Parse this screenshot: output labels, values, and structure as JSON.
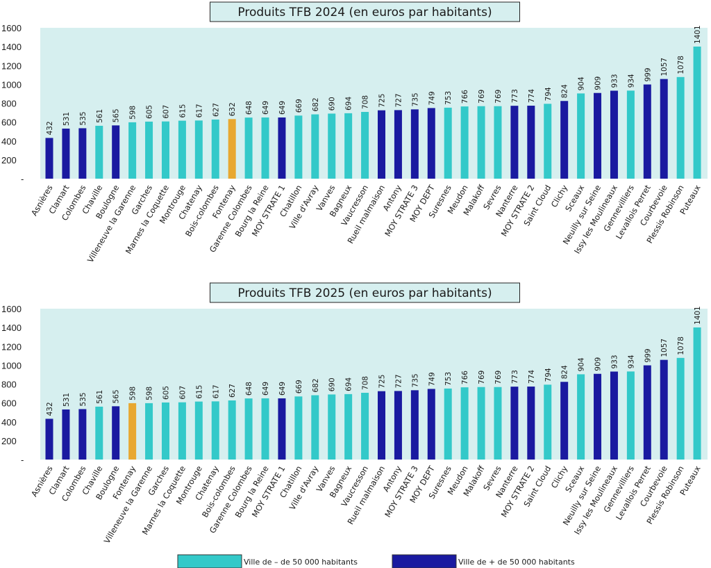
{
  "legend": {
    "small_label": "Ville de – de 50 000 habitants",
    "large_label": "Ville de + de 50 000 habitants"
  },
  "colors": {
    "small": "#33C9C9",
    "large": "#1A1AA0",
    "highlight": "#E8A830",
    "plot_bg": "#D6EFEF"
  },
  "chart_data": [
    {
      "type": "bar",
      "title": "Produits TFB 2024 (en euros par habitants)",
      "ylim": [
        0,
        1600
      ],
      "yticks": [
        "-",
        "200",
        "400",
        "600",
        "800",
        "1000",
        "1200",
        "1400",
        "1600"
      ],
      "grid": false,
      "categories": [
        "Asnières",
        "Clamart",
        "Colombes",
        "Chaville",
        "Boulogne",
        "Villeneuve la Garenne",
        "Garches",
        "Marnes la Coquette",
        "Montrouge",
        "Chatenay",
        "Bois-colombes",
        "Fontenay",
        "Garenne Colombes",
        "Bourg la Reine",
        "MOY STRATE 1",
        "Chatillon",
        "Ville d'Avray",
        "Vanves",
        "Bagneux",
        "Vaucresson",
        "Rueil malmaison",
        "Antony",
        "MOY STRATE 3",
        "MOY DEPT",
        "Suresnes",
        "Meudon",
        "Malakoff",
        "Sevres",
        "Nanterre",
        "MOY STRATE 2",
        "Saint Cloud",
        "Clichy",
        "Sceaux",
        "Neuilly sur Seine",
        "Issy les Moulineaux",
        "Gennevilliers",
        "Levallois Perret",
        "Courbevoie",
        "Plessis Robinson",
        "Puteaux"
      ],
      "values": [
        432,
        531,
        535,
        561,
        565,
        598,
        605,
        607,
        615,
        617,
        627,
        632,
        648,
        649,
        649,
        669,
        682,
        690,
        694,
        708,
        725,
        727,
        735,
        749,
        753,
        766,
        769,
        769,
        773,
        774,
        794,
        824,
        904,
        909,
        933,
        934,
        999,
        1057,
        1078,
        1401
      ],
      "groups": [
        "large",
        "large",
        "large",
        "small",
        "large",
        "small",
        "small",
        "small",
        "small",
        "small",
        "small",
        "highlight",
        "small",
        "small",
        "large",
        "small",
        "small",
        "small",
        "small",
        "small",
        "large",
        "large",
        "large",
        "large",
        "small",
        "small",
        "small",
        "small",
        "large",
        "large",
        "small",
        "large",
        "small",
        "large",
        "large",
        "small",
        "large",
        "large",
        "small",
        "small"
      ]
    },
    {
      "type": "bar",
      "title": "Produits TFB 2025 (en euros par habitants)",
      "ylim": [
        0,
        1600
      ],
      "yticks": [
        "-",
        "200",
        "400",
        "600",
        "800",
        "1000",
        "1200",
        "1400",
        "1600"
      ],
      "grid": false,
      "categories": [
        "Asnières",
        "Clamart",
        "Colombes",
        "Chaville",
        "Boulogne",
        "Fontenay",
        "Villeneuve la Garenne",
        "Garches",
        "Marnes la Coquette",
        "Montrouge",
        "Chatenay",
        "Bois-colombes",
        "Garenne Colombes",
        "Bourg la Reine",
        "MOY STRATE 1",
        "Chatillon",
        "Ville d'Avray",
        "Vanves",
        "Bagneux",
        "Vaucresson",
        "Rueil malmaison",
        "Antony",
        "MOY STRATE 3",
        "MOY DEPT",
        "Suresnes",
        "Meudon",
        "Malakoff",
        "Sevres",
        "Nanterre",
        "MOY STRATE 2",
        "Saint Cloud",
        "Clichy",
        "Sceaux",
        "Neuilly sur Seine",
        "Issy les Moulineaux",
        "Gennevilliers",
        "Levallois Perret",
        "Courbevoie",
        "Plessis Robinson",
        "Puteaux"
      ],
      "values": [
        432,
        531,
        535,
        561,
        565,
        598,
        598,
        605,
        607,
        615,
        617,
        627,
        648,
        649,
        649,
        669,
        682,
        690,
        694,
        708,
        725,
        727,
        735,
        749,
        753,
        766,
        769,
        769,
        773,
        774,
        794,
        824,
        904,
        909,
        933,
        934,
        999,
        1057,
        1078,
        1401
      ],
      "groups": [
        "large",
        "large",
        "large",
        "small",
        "large",
        "highlight",
        "small",
        "small",
        "small",
        "small",
        "small",
        "small",
        "small",
        "small",
        "large",
        "small",
        "small",
        "small",
        "small",
        "small",
        "large",
        "large",
        "large",
        "large",
        "small",
        "small",
        "small",
        "small",
        "large",
        "large",
        "small",
        "large",
        "small",
        "large",
        "large",
        "small",
        "large",
        "large",
        "small",
        "small"
      ]
    }
  ]
}
